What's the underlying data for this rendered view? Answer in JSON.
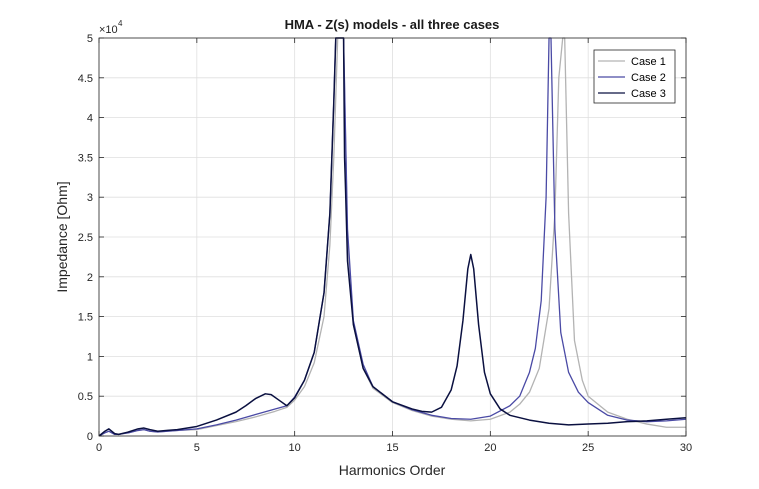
{
  "chart_data": {
    "type": "line",
    "title": "HMA - Z(s) models - all three cases",
    "xlabel": "Harmonics Order",
    "ylabel": "Impedance [Ohm]",
    "y_exponent_label": "×10",
    "y_exponent": "4",
    "xlim": [
      0,
      30
    ],
    "ylim": [
      0,
      50000
    ],
    "xticks": [
      0,
      5,
      10,
      15,
      20,
      25,
      30
    ],
    "yticks": [
      0,
      5000,
      10000,
      15000,
      20000,
      25000,
      30000,
      35000,
      40000,
      45000,
      50000
    ],
    "ytick_labels": [
      "0",
      "0.5",
      "1",
      "1.5",
      "2",
      "2.5",
      "3",
      "3.5",
      "4",
      "4.5",
      "5"
    ],
    "grid": true,
    "legend_position": "top-right",
    "series": [
      {
        "name": "Case 1",
        "color": "#b3b3b3",
        "x": [
          0,
          0.3,
          0.5,
          0.8,
          1,
          1.5,
          2,
          2.3,
          2.6,
          3,
          3.5,
          4,
          5,
          6,
          7,
          8,
          9,
          9.6,
          10,
          10.5,
          11,
          11.5,
          11.8,
          12,
          12.2,
          12.35,
          12.5,
          12.7,
          13,
          13.5,
          14,
          15,
          16,
          17,
          18,
          19,
          20,
          21,
          21.5,
          22,
          22.5,
          23,
          23.3,
          23.5,
          23.7,
          23.8,
          24,
          24.3,
          24.7,
          25,
          26,
          27,
          28,
          29,
          30
        ],
        "y": [
          0,
          400,
          600,
          200,
          200,
          400,
          700,
          800,
          600,
          500,
          600,
          700,
          800,
          1300,
          1800,
          2400,
          3100,
          3600,
          4500,
          6200,
          9200,
          15000,
          24000,
          35000,
          50000,
          50000,
          50000,
          25000,
          14000,
          8500,
          6000,
          4200,
          3200,
          2500,
          2100,
          1900,
          2100,
          3000,
          4000,
          5500,
          8500,
          16000,
          28000,
          45000,
          50000,
          50000,
          28000,
          12000,
          7000,
          5000,
          3000,
          2100,
          1500,
          1100,
          1100
        ]
      },
      {
        "name": "Case 2",
        "color": "#4a4aa5",
        "x": [
          0,
          0.3,
          0.5,
          0.8,
          1,
          1.5,
          2,
          2.3,
          2.6,
          3,
          3.5,
          4,
          5,
          6,
          7,
          8,
          9,
          9.6,
          10,
          10.5,
          11,
          11.5,
          11.8,
          12,
          12.1,
          12.2,
          12.35,
          12.5,
          12.7,
          13,
          13.5,
          14,
          15,
          16,
          17,
          18,
          19,
          20,
          21,
          21.5,
          22,
          22.3,
          22.6,
          22.85,
          23,
          23.1,
          23.3,
          23.6,
          24,
          24.5,
          25,
          26,
          27,
          28,
          29,
          30
        ],
        "y": [
          0,
          400,
          600,
          200,
          200,
          400,
          700,
          800,
          600,
          500,
          600,
          700,
          900,
          1400,
          2000,
          2700,
          3400,
          3800,
          4900,
          7000,
          10500,
          18000,
          28000,
          42000,
          50000,
          50000,
          50000,
          50000,
          26000,
          14500,
          9000,
          6200,
          4300,
          3300,
          2600,
          2200,
          2100,
          2500,
          3800,
          5000,
          8000,
          11000,
          17000,
          30000,
          50000,
          50000,
          26000,
          13000,
          8000,
          5500,
          4200,
          2600,
          2000,
          1800,
          1900,
          2100
        ]
      },
      {
        "name": "Case 3",
        "color": "#0a1040",
        "x": [
          0,
          0.3,
          0.5,
          0.8,
          1,
          1.5,
          2,
          2.3,
          2.6,
          3,
          3.5,
          4,
          5,
          6,
          7,
          7.5,
          8,
          8.5,
          8.8,
          9.2,
          9.6,
          10,
          10.5,
          11,
          11.5,
          11.8,
          12,
          12.1,
          12.2,
          12.35,
          12.5,
          12.55,
          12.6,
          12.7,
          13,
          13.5,
          14,
          15,
          16,
          16.5,
          17,
          17.5,
          18,
          18.3,
          18.6,
          18.85,
          19,
          19.15,
          19.4,
          19.7,
          20,
          20.5,
          21,
          22,
          23,
          24,
          25,
          26,
          27,
          28,
          29,
          30
        ],
        "y": [
          0,
          600,
          900,
          300,
          200,
          500,
          900,
          1000,
          800,
          600,
          700,
          800,
          1200,
          2000,
          3000,
          3800,
          4700,
          5300,
          5200,
          4500,
          3800,
          4800,
          7000,
          10500,
          18000,
          28000,
          42000,
          50000,
          50000,
          50000,
          50000,
          35000,
          31000,
          22000,
          14000,
          8500,
          6200,
          4300,
          3400,
          3100,
          3000,
          3600,
          5800,
          8800,
          14500,
          21000,
          22800,
          21000,
          14000,
          8000,
          5300,
          3400,
          2600,
          2000,
          1600,
          1400,
          1500,
          1600,
          1800,
          1900,
          2100,
          2300
        ]
      }
    ]
  }
}
